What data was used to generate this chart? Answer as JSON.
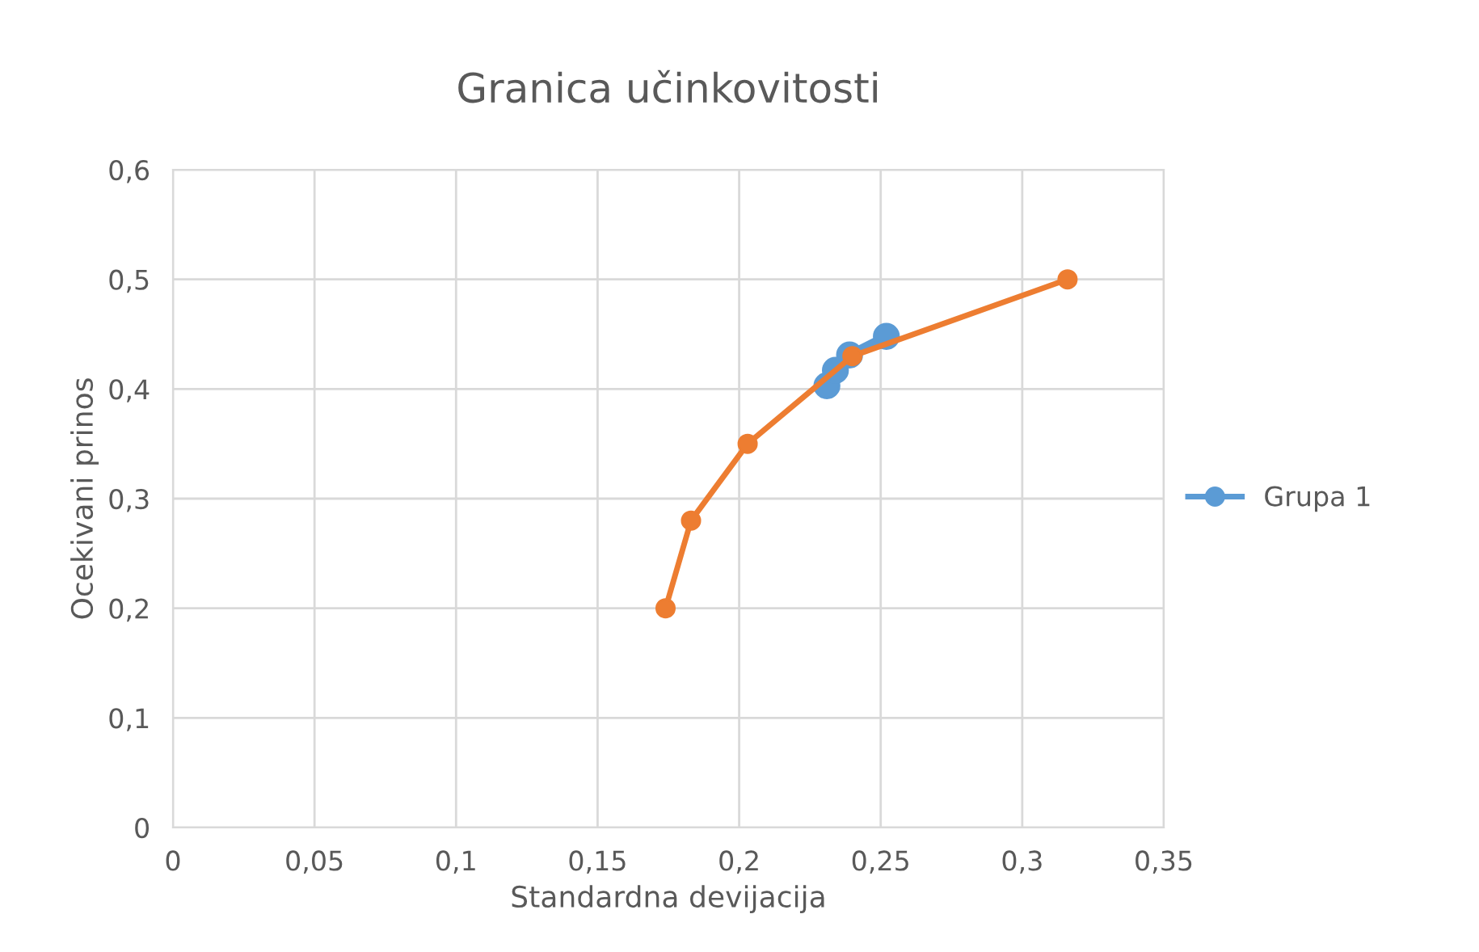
{
  "chart_data": {
    "type": "line",
    "title": "Granica učinkovitosti",
    "xlabel": "Standardna devijacija",
    "ylabel": "Ocekivani prinos",
    "xlim": [
      0,
      0.35
    ],
    "xticks": [
      {
        "value": 0,
        "label": "0"
      },
      {
        "value": 0.05,
        "label": "0,05"
      },
      {
        "value": 0.1,
        "label": "0,1"
      },
      {
        "value": 0.15,
        "label": "0,15"
      },
      {
        "value": 0.2,
        "label": "0,2"
      },
      {
        "value": 0.25,
        "label": "0,25"
      },
      {
        "value": 0.3,
        "label": "0,3"
      },
      {
        "value": 0.35,
        "label": "0,35"
      }
    ],
    "ylim": [
      0,
      0.6
    ],
    "yticks": [
      {
        "value": 0,
        "label": "0"
      },
      {
        "value": 0.1,
        "label": "0,1"
      },
      {
        "value": 0.2,
        "label": "0,2"
      },
      {
        "value": 0.3,
        "label": "0,3"
      },
      {
        "value": 0.4,
        "label": "0,4"
      },
      {
        "value": 0.5,
        "label": "0,5"
      },
      {
        "value": 0.6,
        "label": "0,6"
      }
    ],
    "grid": true,
    "legend": "right",
    "marker": "circle",
    "line_style": "solid",
    "series": [
      {
        "name": "Grupa 1",
        "color": "#5b9bd5",
        "x": [
          0.231,
          0.234,
          0.239,
          0.252
        ],
        "values": [
          0.403,
          0.417,
          0.431,
          0.448
        ]
      },
      {
        "color": "#ed7d31",
        "x": [
          0.174,
          0.183,
          0.203,
          0.24,
          0.316
        ],
        "values": [
          0.2,
          0.28,
          0.35,
          0.43,
          0.5
        ]
      }
    ]
  }
}
